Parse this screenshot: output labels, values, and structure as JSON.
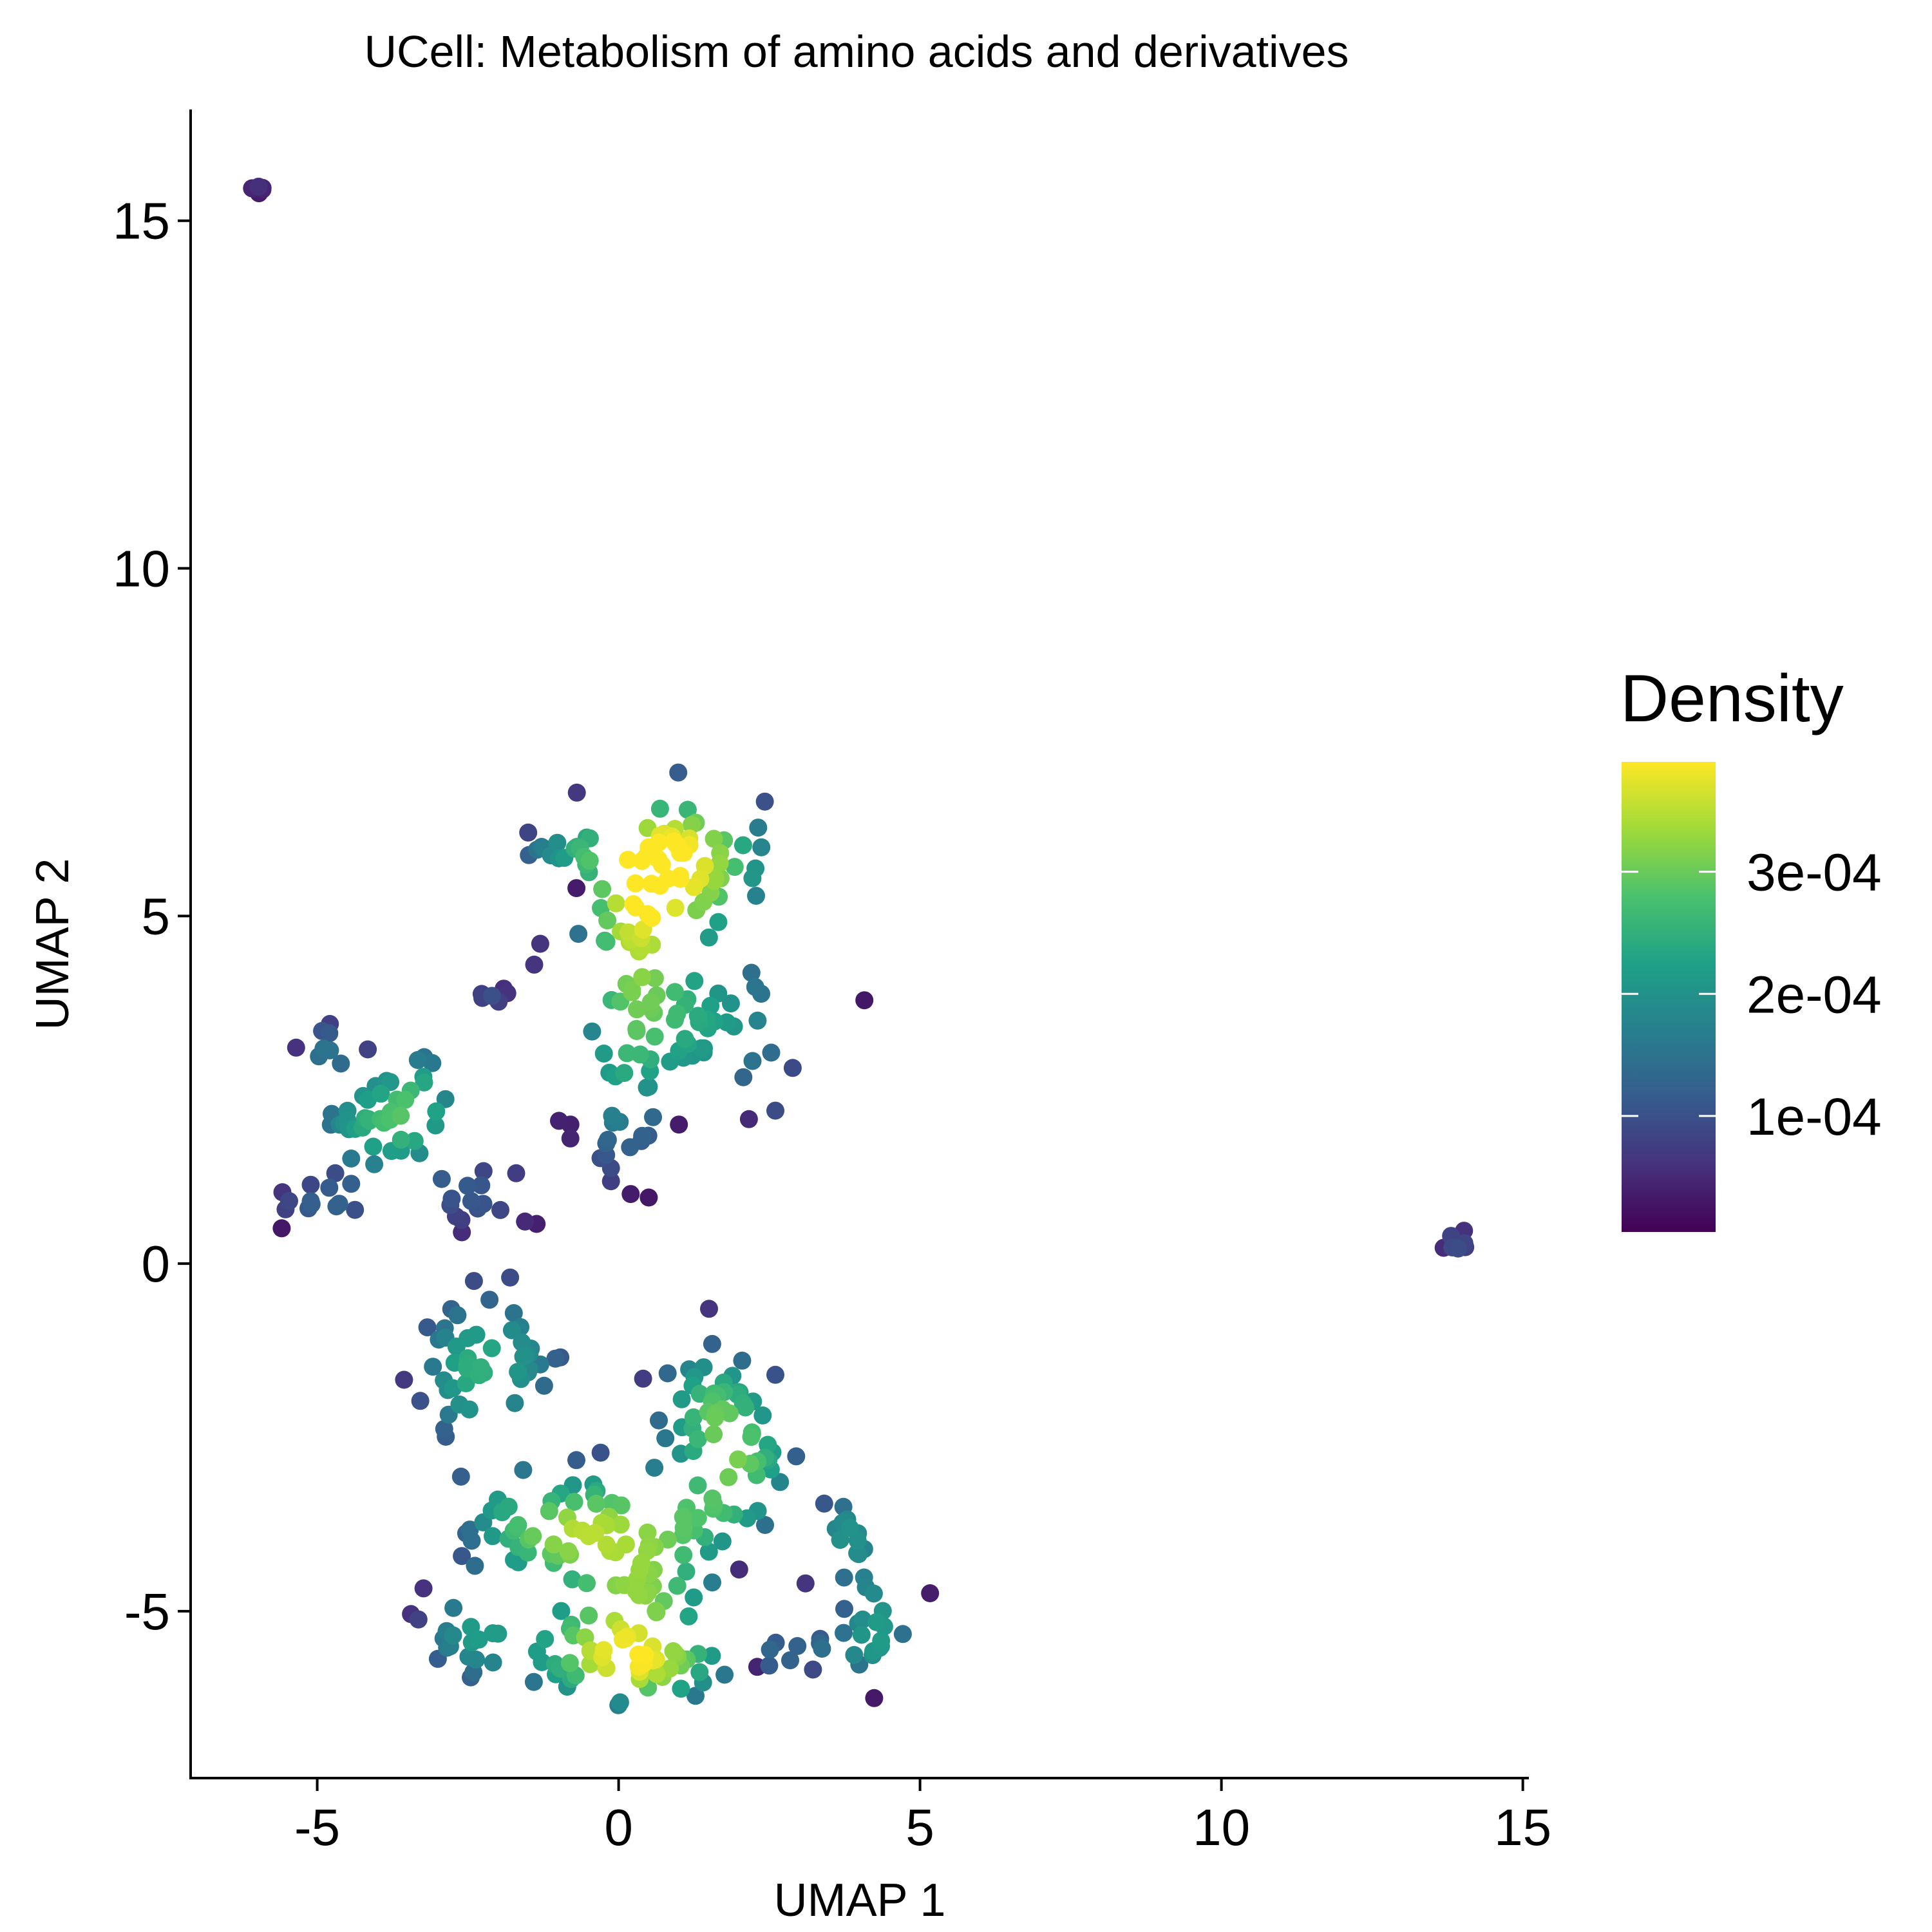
{
  "chart_data": {
    "type": "scatter",
    "title": "UCell: Metabolism of amino acids and derivatives",
    "xlabel": "UMAP 1",
    "ylabel": "UMAP 2",
    "xlim": [
      -7.1,
      15.1
    ],
    "ylim": [
      -7.4,
      16.6
    ],
    "xticks": [
      -5,
      0,
      5,
      10,
      15
    ],
    "xtick_labels": [
      "-5",
      "0",
      "5",
      "10",
      "15"
    ],
    "yticks": [
      -5,
      0,
      5,
      10,
      15
    ],
    "ytick_labels": [
      "-5",
      "0",
      "5",
      "10",
      "15"
    ],
    "grid": false,
    "legend": {
      "title": "Density",
      "placement": "right",
      "colormap": "viridis",
      "range": [
        5e-06,
        0.00039
      ],
      "ticks": [
        0.0001,
        0.0002,
        0.0003
      ],
      "tick_labels": [
        "1e-04",
        "2e-04",
        "3e-04"
      ]
    },
    "colors": [
      "#440154",
      "#46327e",
      "#365c8d",
      "#277f8e",
      "#1fa187",
      "#4ac16d",
      "#a0da39",
      "#fde725"
    ],
    "clusters": [
      {
        "cx": -6.0,
        "cy": 15.55,
        "sx": 0.1,
        "sy": 0.08,
        "n": 5,
        "peak": 0.6
      },
      {
        "cx": 13.9,
        "cy": 0.3,
        "sx": 0.12,
        "sy": 0.12,
        "n": 7,
        "peak": 1.0
      },
      {
        "cx": 1.0,
        "cy": 5.8,
        "sx": 0.7,
        "sy": 0.5,
        "n": 60,
        "peak": 3.8
      },
      {
        "cx": -1.0,
        "cy": 5.95,
        "sx": 0.4,
        "sy": 0.15,
        "n": 14,
        "peak": 1.2
      },
      {
        "cx": 0.2,
        "cy": 4.6,
        "sx": 0.4,
        "sy": 0.6,
        "n": 30,
        "peak": 2.0
      },
      {
        "cx": 1.5,
        "cy": 3.4,
        "sx": 0.8,
        "sy": 0.5,
        "n": 45,
        "peak": 2.1
      },
      {
        "cx": 0.0,
        "cy": 2.3,
        "sx": 0.35,
        "sy": 0.6,
        "n": 22,
        "peak": 1.4
      },
      {
        "cx": -2.1,
        "cy": 3.85,
        "sx": 0.15,
        "sy": 0.08,
        "n": 7,
        "peak": 0.9
      },
      {
        "cx": -4.1,
        "cy": 2.0,
        "sx": 0.45,
        "sy": 0.4,
        "n": 30,
        "peak": 2.3
      },
      {
        "cx": -3.2,
        "cy": 2.4,
        "sx": 0.3,
        "sy": 0.4,
        "n": 14,
        "peak": 1.7
      },
      {
        "cx": -4.9,
        "cy": 3.1,
        "sx": 0.2,
        "sy": 0.2,
        "n": 8,
        "peak": 1.2
      },
      {
        "cx": -5.0,
        "cy": 0.85,
        "sx": 0.4,
        "sy": 0.15,
        "n": 12,
        "peak": 1.0
      },
      {
        "cx": -2.3,
        "cy": 1.0,
        "sx": 0.45,
        "sy": 0.25,
        "n": 16,
        "peak": 1.0
      },
      {
        "cx": -2.6,
        "cy": -1.5,
        "sx": 0.4,
        "sy": 0.5,
        "n": 30,
        "peak": 2.0
      },
      {
        "cx": -1.5,
        "cy": -1.3,
        "sx": 0.4,
        "sy": 0.5,
        "n": 16,
        "peak": 1.4
      },
      {
        "cx": 1.5,
        "cy": -2.0,
        "sx": 0.45,
        "sy": 0.45,
        "n": 35,
        "peak": 2.4
      },
      {
        "cx": 2.2,
        "cy": -2.9,
        "sx": 0.4,
        "sy": 0.4,
        "n": 20,
        "peak": 1.9
      },
      {
        "cx": -2.1,
        "cy": -3.5,
        "sx": 0.35,
        "sy": 0.5,
        "n": 16,
        "peak": 1.4
      },
      {
        "cx": -1.2,
        "cy": -3.9,
        "sx": 0.4,
        "sy": 0.3,
        "n": 12,
        "peak": 1.6
      },
      {
        "cx": -0.3,
        "cy": -3.6,
        "sx": 0.5,
        "sy": 0.4,
        "n": 25,
        "peak": 2.0
      },
      {
        "cx": 0.5,
        "cy": -4.6,
        "sx": 0.6,
        "sy": 0.4,
        "n": 30,
        "peak": 2.3
      },
      {
        "cx": 1.3,
        "cy": -3.6,
        "sx": 0.5,
        "sy": 0.3,
        "n": 16,
        "peak": 1.5
      },
      {
        "cx": -2.5,
        "cy": -5.3,
        "sx": 0.4,
        "sy": 0.35,
        "n": 20,
        "peak": 1.7
      },
      {
        "cx": -0.3,
        "cy": -5.6,
        "sx": 0.7,
        "sy": 0.35,
        "n": 40,
        "peak": 2.5
      },
      {
        "cx": 0.7,
        "cy": -5.9,
        "sx": 0.6,
        "sy": 0.25,
        "n": 18,
        "peak": 1.6
      },
      {
        "cx": 3.8,
        "cy": -3.9,
        "sx": 0.25,
        "sy": 0.3,
        "n": 14,
        "peak": 1.9
      },
      {
        "cx": 4.3,
        "cy": -5.1,
        "sx": 0.3,
        "sy": 0.35,
        "n": 18,
        "peak": 2.0
      },
      {
        "cx": 3.2,
        "cy": -5.6,
        "sx": 0.6,
        "sy": 0.15,
        "n": 12,
        "peak": 1.2
      }
    ],
    "outliers": [
      {
        "x": -0.7,
        "y": 5.4,
        "level": 0.3
      },
      {
        "x": -1.3,
        "y": 4.6,
        "level": 0.6
      },
      {
        "x": -1.4,
        "y": 4.3,
        "level": 0.6
      },
      {
        "x": -0.8,
        "y": 1.8,
        "level": 0.4
      },
      {
        "x": -0.8,
        "y": 2.0,
        "level": 0.35
      },
      {
        "x": 0.2,
        "y": 1.0,
        "level": 0.3
      },
      {
        "x": 0.5,
        "y": 0.95,
        "level": 0.25
      },
      {
        "x": 1.0,
        "y": 2.0,
        "level": 0.3
      },
      {
        "x": -1.7,
        "y": 1.3,
        "level": 0.7
      },
      {
        "x": -2.6,
        "y": 0.45,
        "level": 0.5
      },
      {
        "x": 1.5,
        "y": -0.65,
        "level": 0.6
      },
      {
        "x": -2.4,
        "y": -0.25,
        "level": 0.9
      },
      {
        "x": -1.8,
        "y": -0.2,
        "level": 0.9
      },
      {
        "x": 3.1,
        "y": -4.6,
        "level": 0.6
      },
      {
        "x": 2.0,
        "y": -4.4,
        "level": 0.5
      },
      {
        "x": 2.3,
        "y": -5.8,
        "level": 0.4
      },
      {
        "x": 2.6,
        "y": -1.6,
        "level": 1.0
      },
      {
        "x": 2.6,
        "y": 2.2,
        "level": 0.9
      },
      {
        "x": -1.5,
        "y": 6.2,
        "level": 0.8
      },
      {
        "x": -4.7,
        "y": 1.3,
        "level": 0.9
      }
    ]
  }
}
